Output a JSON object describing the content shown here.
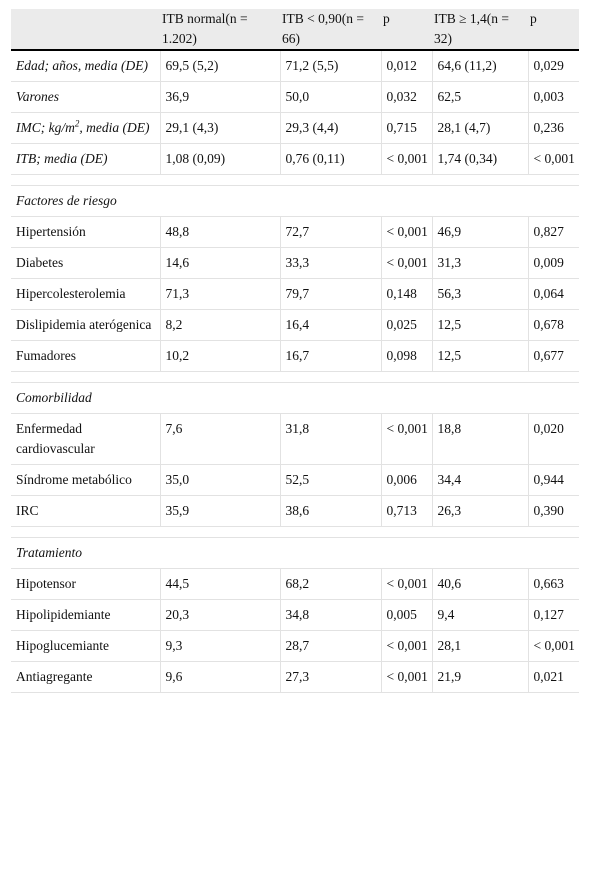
{
  "headers": [
    "",
    "ITB normal(n = 1.202)",
    "ITB < 0,90(n = 66)",
    "p",
    "ITB ≥ 1,4(n = 32)",
    "p"
  ],
  "rows": [
    {
      "type": "data",
      "label": "Edad; años, media (DE)",
      "italic": true,
      "values": [
        "69,5 (5,2)",
        "71,2 (5,5)",
        "0,012",
        "64,6 (11,2)",
        "0,029"
      ]
    },
    {
      "type": "data",
      "label": "Varones",
      "italic": true,
      "values": [
        "36,9",
        "50,0",
        "0,032",
        "62,5",
        "0,003"
      ]
    },
    {
      "type": "data",
      "label": "IMC; kg/m2, media (DE)",
      "italic": true,
      "sup": true,
      "values": [
        "29,1 (4,3)",
        "29,3 (4,4)",
        "0,715",
        "28,1 (4,7)",
        "0,236"
      ]
    },
    {
      "type": "data",
      "label": "ITB; media (DE)",
      "italic": true,
      "values": [
        "1,08 (0,09)",
        "0,76 (0,11)",
        "< 0,001",
        "1,74 (0,34)",
        "< 0,001"
      ]
    },
    {
      "type": "spacer"
    },
    {
      "type": "section",
      "label": "Factores de riesgo"
    },
    {
      "type": "data",
      "label": "Hipertensión",
      "values": [
        "48,8",
        "72,7",
        "< 0,001",
        "46,9",
        "0,827"
      ]
    },
    {
      "type": "data",
      "label": "Diabetes",
      "values": [
        "14,6",
        "33,3",
        "< 0,001",
        "31,3",
        "0,009"
      ]
    },
    {
      "type": "data",
      "label": "Hipercolesterolemia",
      "values": [
        "71,3",
        "79,7",
        "0,148",
        "56,3",
        "0,064"
      ]
    },
    {
      "type": "data",
      "label": "Dislipidemia aterógenica",
      "values": [
        "8,2",
        "16,4",
        "0,025",
        "12,5",
        "0,678"
      ]
    },
    {
      "type": "data",
      "label": "Fumadores",
      "values": [
        "10,2",
        "16,7",
        "0,098",
        "12,5",
        "0,677"
      ]
    },
    {
      "type": "spacer"
    },
    {
      "type": "section",
      "label": "Comorbilidad"
    },
    {
      "type": "data",
      "label": "Enfermedad cardiovascular",
      "values": [
        "7,6",
        "31,8",
        "< 0,001",
        "18,8",
        "0,020"
      ]
    },
    {
      "type": "data",
      "label": "Síndrome metabólico",
      "values": [
        "35,0",
        "52,5",
        "0,006",
        "34,4",
        "0,944"
      ]
    },
    {
      "type": "data",
      "label": "IRC",
      "values": [
        "35,9",
        "38,6",
        "0,713",
        "26,3",
        "0,390"
      ]
    },
    {
      "type": "spacer"
    },
    {
      "type": "section",
      "label": "Tratamiento"
    },
    {
      "type": "data",
      "label": "Hipotensor",
      "values": [
        "44,5",
        "68,2",
        "< 0,001",
        "40,6",
        "0,663"
      ]
    },
    {
      "type": "data",
      "label": "Hipolipidemiante",
      "values": [
        "20,3",
        "34,8",
        "0,005",
        "9,4",
        "0,127"
      ]
    },
    {
      "type": "data",
      "label": "Hipoglucemiante",
      "values": [
        "9,3",
        "28,7",
        "< 0,001",
        "28,1",
        "< 0,001"
      ]
    },
    {
      "type": "data",
      "label": "Antiagregante",
      "values": [
        "9,6",
        "27,3",
        "< 0,001",
        "21,9",
        "0,021"
      ]
    }
  ]
}
